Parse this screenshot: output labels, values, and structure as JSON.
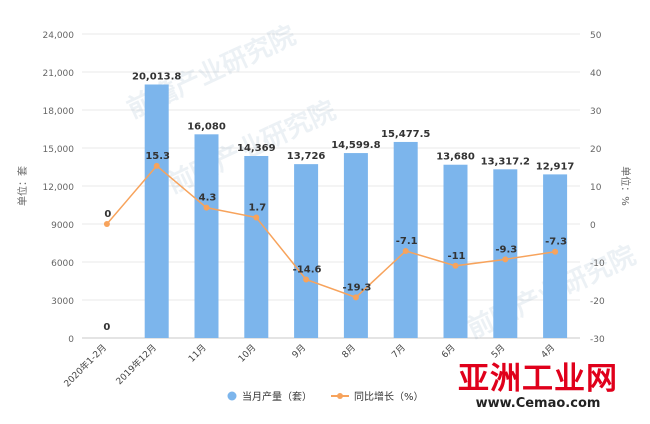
{
  "chart_data": {
    "type": "bar",
    "title": "",
    "categories": [
      "2020年1-2月",
      "2019年12月",
      "11月",
      "10月",
      "9月",
      "8月",
      "7月",
      "6月",
      "5月",
      "4月"
    ],
    "series": [
      {
        "name": "当月产量（套）",
        "type": "bar",
        "axis": "left",
        "values": [
          0,
          20013.8,
          16080,
          14369,
          13726,
          14599.8,
          15477.5,
          13680,
          13317.2,
          12917
        ],
        "labels": [
          "0",
          "20,013.8",
          "16,080",
          "14,369",
          "13,726",
          "14,599.8",
          "15,477.5",
          "13,680",
          "13,317.2",
          "12,917"
        ],
        "color": "#7cb5ec"
      },
      {
        "name": "同比增长（%）",
        "type": "line",
        "axis": "right",
        "values": [
          0,
          15.3,
          4.3,
          1.7,
          -14.6,
          -19.3,
          -7.1,
          -11,
          -9.3,
          -7.3
        ],
        "labels": [
          "0",
          "15.3",
          "4.3",
          "1.7",
          "-14.6",
          "-19.3",
          "-7.1",
          "-11",
          "-9.3",
          "-7.3"
        ],
        "color": "#f7a35c"
      }
    ],
    "y_left": {
      "label": "单位：套",
      "range": [
        0,
        24000
      ],
      "ticks": [
        0,
        3000,
        6000,
        9000,
        12000,
        15000,
        18000,
        21000,
        24000
      ],
      "tick_labels": [
        "0",
        "3000",
        "6000",
        "9000",
        "12,000",
        "15,000",
        "18,000",
        "21,000",
        "24,000"
      ]
    },
    "y_right": {
      "label": "单位：%",
      "range": [
        -30,
        50
      ],
      "ticks": [
        -30,
        -20,
        -10,
        0,
        10,
        20,
        30,
        40,
        50
      ],
      "tick_labels": [
        "-30",
        "-20",
        "-10",
        "0",
        "10",
        "20",
        "30",
        "40",
        "50"
      ]
    },
    "grid": true,
    "legend_position": "bottom",
    "watermark_text": "前瞻产业研究院"
  },
  "branding": {
    "logo_main": "亚洲工业网",
    "logo_url": "www.Cemao.com"
  }
}
